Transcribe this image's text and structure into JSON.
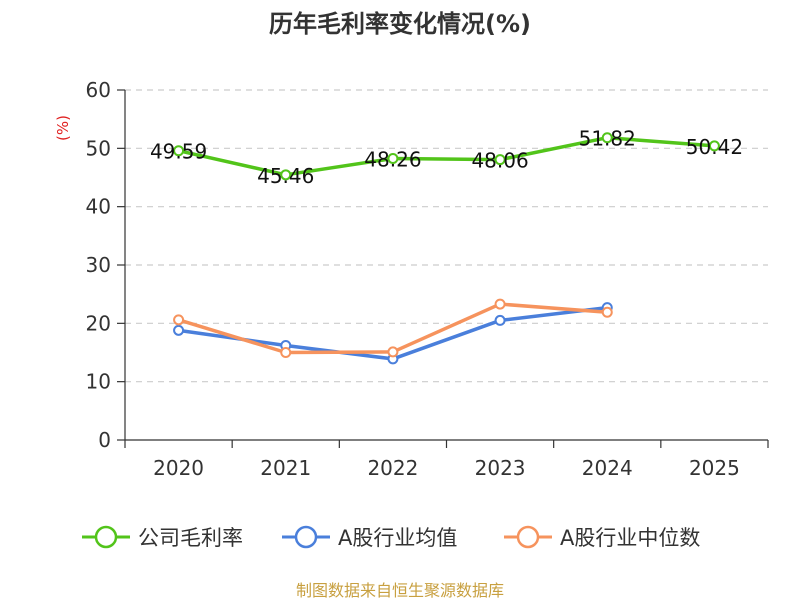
{
  "page": {
    "title": "历年毛利率变化情况(%)",
    "source": "制图数据来自恒生聚源数据库"
  },
  "chart_data": {
    "type": "line",
    "title": "历年毛利率变化情况(%)",
    "ylabel": "(%)",
    "xlabel": "",
    "categories": [
      "2020",
      "2021",
      "2022",
      "2023",
      "2024",
      "2025"
    ],
    "ylim": [
      0,
      60
    ],
    "yticks": [
      0,
      10,
      20,
      30,
      40,
      50,
      60
    ],
    "grid": true,
    "legend_position": "bottom",
    "series": [
      {
        "name": "公司毛利率",
        "color": "#52c41a",
        "values": [
          49.59,
          45.46,
          48.26,
          48.06,
          51.82,
          50.42
        ],
        "labels": [
          "49.59",
          "45.46",
          "48.26",
          "48.06",
          "51.82",
          "50.42"
        ]
      },
      {
        "name": "A股行业均值",
        "color": "#4a7fdb",
        "values": [
          18.8,
          16.2,
          13.9,
          20.5,
          22.7,
          null
        ]
      },
      {
        "name": "A股行业中位数",
        "color": "#f6935d",
        "values": [
          20.6,
          15.0,
          15.1,
          23.3,
          21.9,
          null
        ]
      }
    ]
  }
}
